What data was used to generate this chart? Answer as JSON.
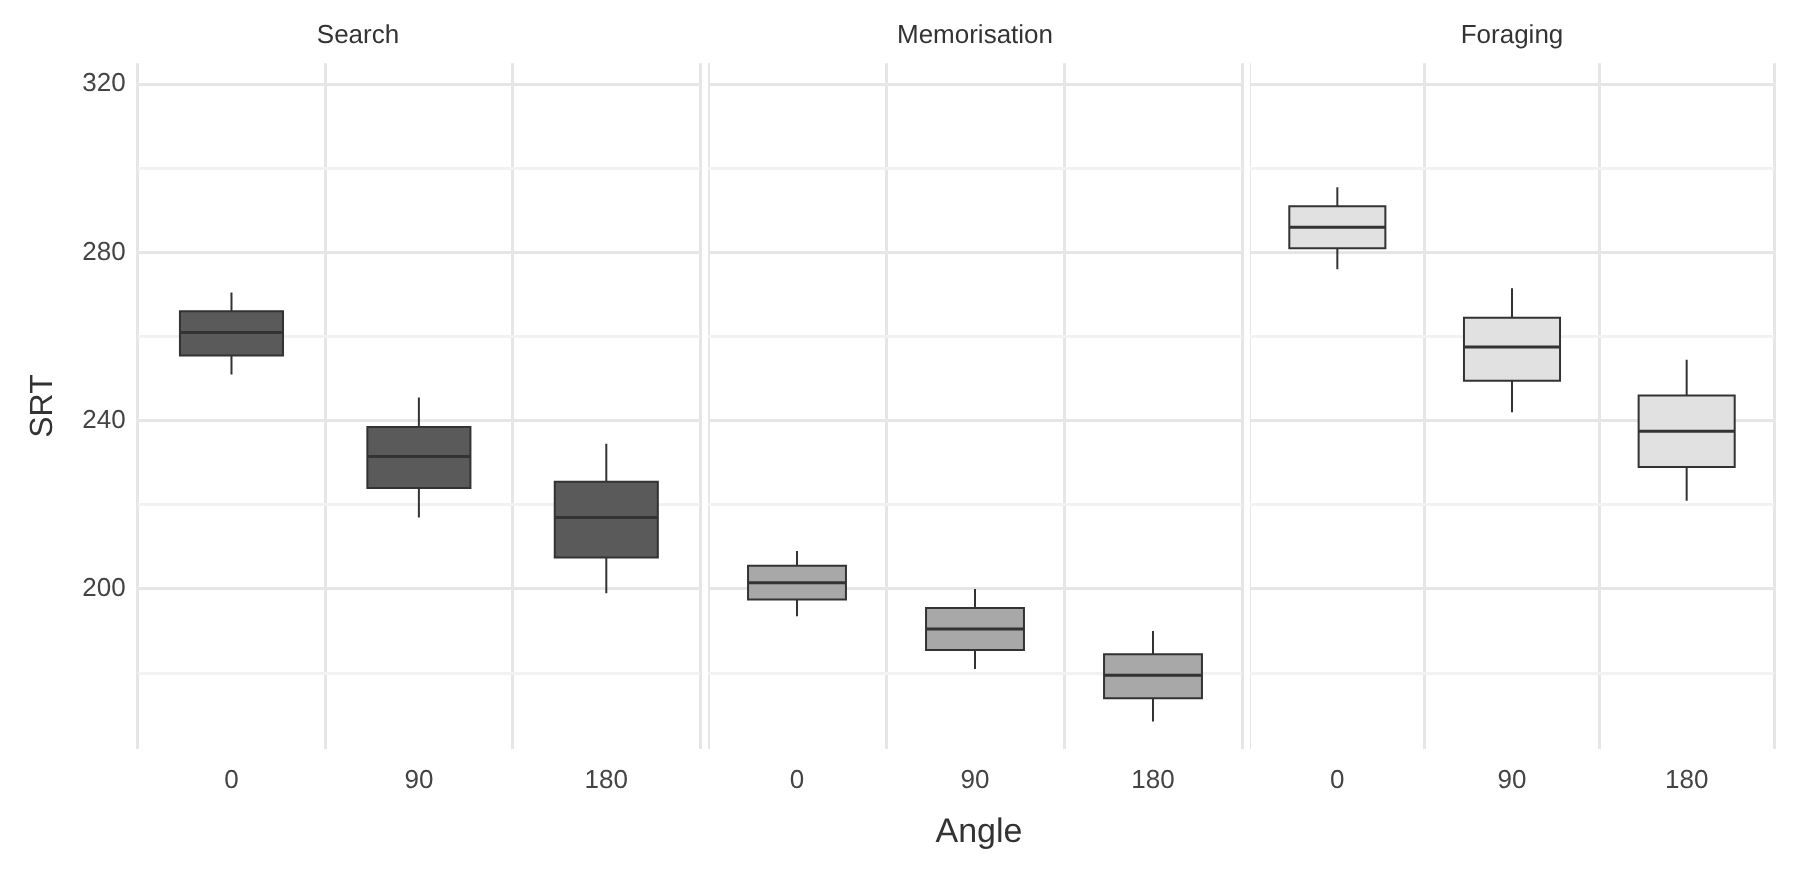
{
  "chart_data": [
    {
      "type": "box",
      "title": "Search",
      "ylabel": "SRT",
      "categories": [
        "0",
        "90",
        "180"
      ],
      "color": "#5a5a5a",
      "grid": true,
      "ylim": [
        162,
        325
      ],
      "yticks": [
        {
          "value": 180,
          "label": null
        },
        200,
        {
          "value": 220,
          "label": null
        },
        240,
        {
          "value": 260,
          "label": null
        },
        280,
        {
          "value": 300,
          "label": null
        },
        320
      ],
      "boxes": [
        {
          "low": 251,
          "q1": 255.5,
          "median": 261,
          "q3": 266,
          "high": 270.5
        },
        {
          "low": 217,
          "q1": 224,
          "median": 231.5,
          "q3": 238.5,
          "high": 245.5
        },
        {
          "low": 199,
          "q1": 207.5,
          "median": 217,
          "q3": 225.5,
          "high": 234.5
        }
      ]
    },
    {
      "type": "box",
      "title": "Memorisation",
      "xlabel": "Angle",
      "categories": [
        "0",
        "90",
        "180"
      ],
      "color": "#a8a8a8",
      "grid": true,
      "tick_labels": "x",
      "ylim": [
        162,
        325
      ],
      "yticks": [
        {
          "value": 180,
          "label": null
        },
        200,
        {
          "value": 220,
          "label": null
        },
        240,
        {
          "value": 260,
          "label": null
        },
        280,
        {
          "value": 300,
          "label": null
        },
        320
      ],
      "boxes": [
        {
          "low": 193.5,
          "q1": 197.5,
          "median": 201.5,
          "q3": 205.5,
          "high": 209
        },
        {
          "low": 181,
          "q1": 185.5,
          "median": 190.5,
          "q3": 195.5,
          "high": 200
        },
        {
          "low": 168.5,
          "q1": 174,
          "median": 179.5,
          "q3": 184.5,
          "high": 190
        }
      ]
    },
    {
      "type": "box",
      "title": "Foraging",
      "categories": [
        "0",
        "90",
        "180"
      ],
      "color": "#e1e1e1",
      "grid": true,
      "tick_labels": "x",
      "ylim": [
        162,
        325
      ],
      "yticks": [
        {
          "value": 180,
          "label": null
        },
        200,
        {
          "value": 220,
          "label": null
        },
        240,
        {
          "value": 260,
          "label": null
        },
        280,
        {
          "value": 300,
          "label": null
        },
        320
      ],
      "boxes": [
        {
          "low": 276,
          "q1": 281,
          "median": 286,
          "q3": 291,
          "high": 295.5
        },
        {
          "low": 242,
          "q1": 249.5,
          "median": 257.5,
          "q3": 264.5,
          "high": 271.5
        },
        {
          "low": 221,
          "q1": 229,
          "median": 237.5,
          "q3": 246,
          "high": 254.5
        }
      ]
    }
  ]
}
